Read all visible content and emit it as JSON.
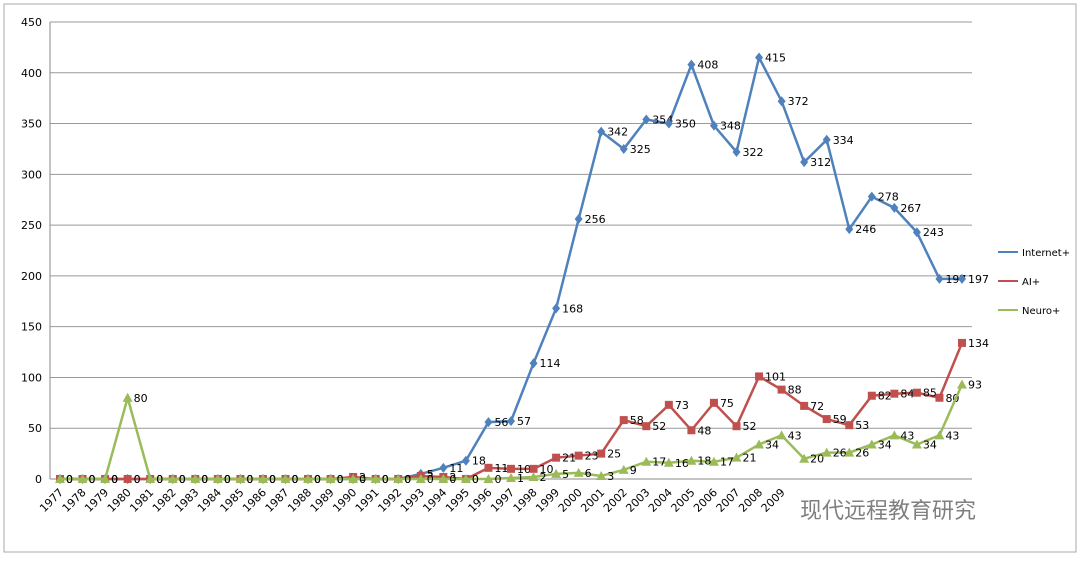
{
  "chart_data": {
    "type": "line",
    "categories": [
      "1977",
      "1978",
      "1979",
      "1980",
      "1981",
      "1982",
      "1983",
      "1984",
      "1985",
      "1986",
      "1987",
      "1988",
      "1989",
      "1990",
      "1991",
      "1992",
      "1993",
      "1994",
      "1995",
      "1996",
      "1997",
      "1998",
      "1999",
      "2000",
      "2001",
      "2002",
      "2003",
      "2004",
      "2005",
      "2006",
      "2007",
      "2008",
      "2009",
      null,
      null,
      null,
      null,
      null,
      null,
      null,
      null
    ],
    "series": [
      {
        "name": "Internet+",
        "color": "#4f81bd",
        "values": [
          0,
          0,
          0,
          0,
          0,
          0,
          0,
          0,
          0,
          0,
          0,
          0,
          0,
          0,
          0,
          0,
          5,
          11,
          18,
          56,
          57,
          114,
          168,
          256,
          342,
          325,
          354,
          350,
          408,
          348,
          322,
          415,
          372,
          312,
          334,
          246,
          278,
          267,
          243,
          197,
          197
        ]
      },
      {
        "name": "AI+",
        "color": "#c0504d",
        "values": [
          0,
          0,
          0,
          0,
          0,
          0,
          0,
          0,
          0,
          0,
          0,
          0,
          0,
          2,
          0,
          0,
          3,
          2,
          0,
          11,
          10,
          10,
          21,
          23,
          25,
          58,
          52,
          73,
          48,
          75,
          52,
          101,
          88,
          72,
          59,
          53,
          82,
          84,
          85,
          80,
          134
        ]
      },
      {
        "name": "Neuro+",
        "color": "#9bbb59",
        "values": [
          0,
          0,
          0,
          80,
          0,
          0,
          0,
          0,
          0,
          0,
          0,
          0,
          0,
          0,
          0,
          0,
          0,
          0,
          0,
          0,
          1,
          2,
          5,
          6,
          3,
          9,
          17,
          16,
          18,
          17,
          21,
          34,
          43,
          20,
          26,
          26,
          34,
          43,
          34,
          43,
          93
        ]
      }
    ],
    "ylim": [
      0,
      450
    ],
    "yticks": [
      0,
      50,
      100,
      150,
      200,
      250,
      300,
      350,
      400,
      450
    ],
    "grid": true,
    "legend": "right",
    "watermark": "现代远程教育研究"
  }
}
